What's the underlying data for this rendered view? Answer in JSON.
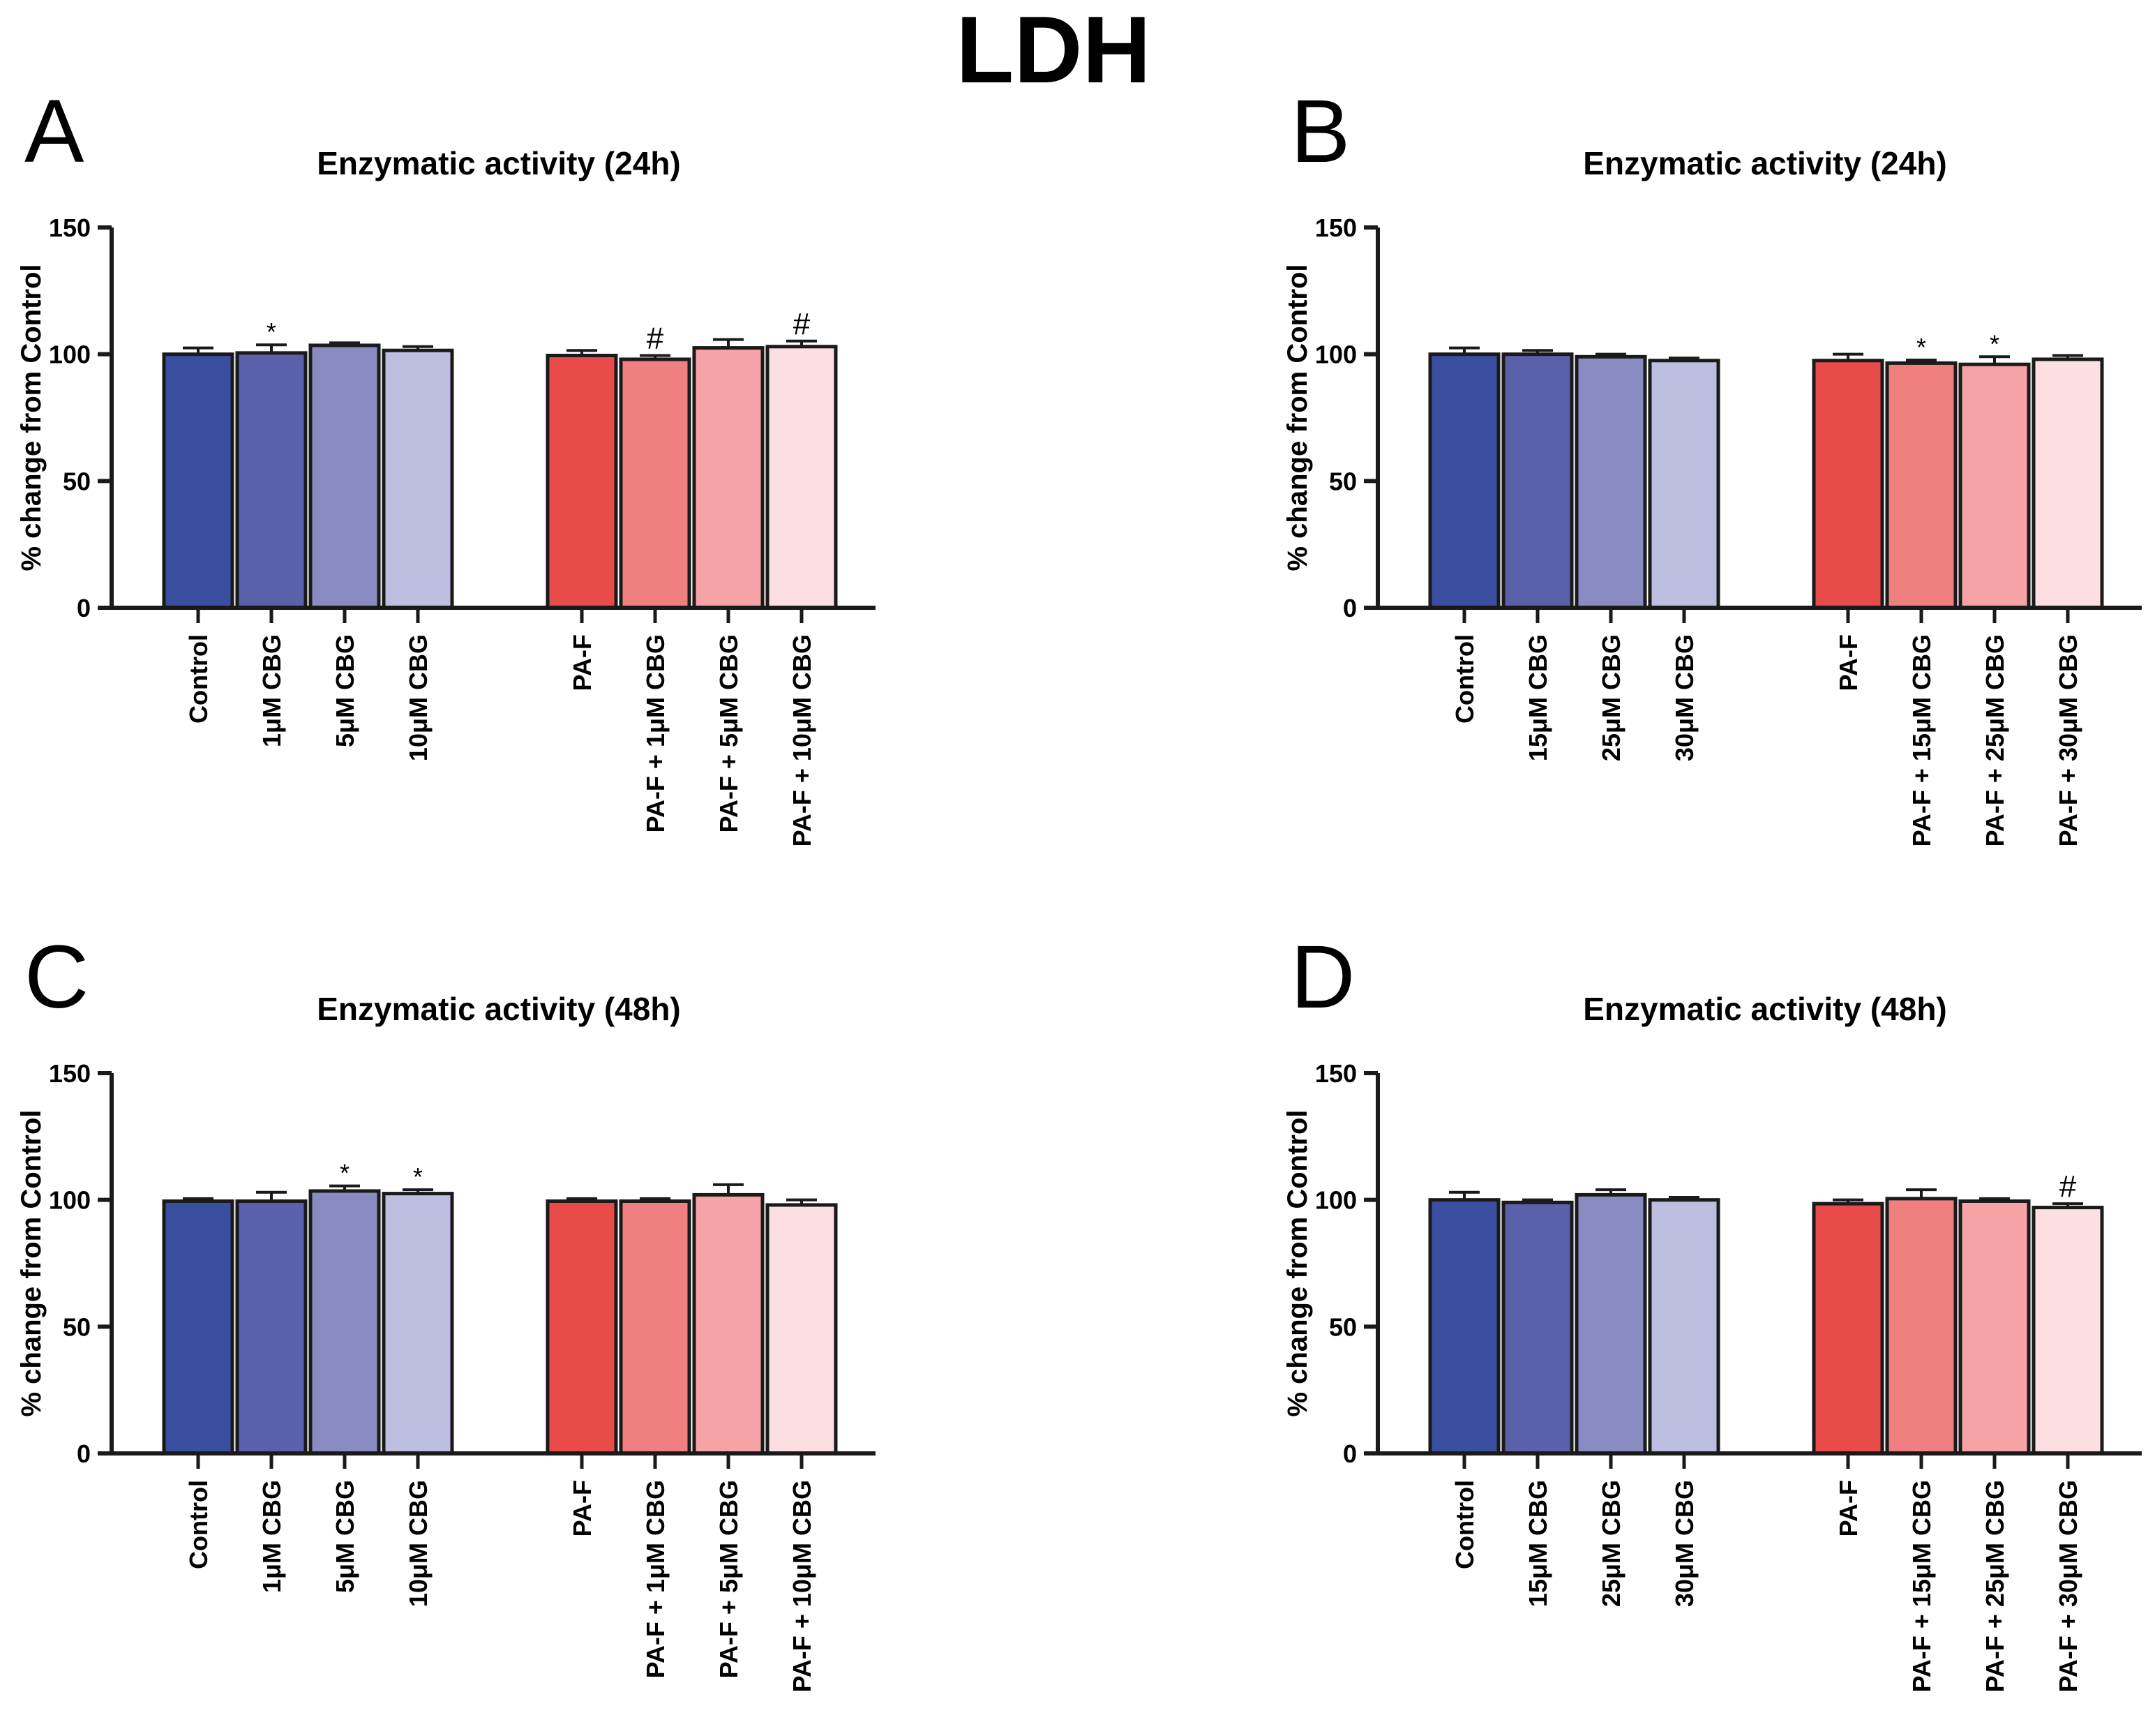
{
  "figure_title": "LDH",
  "chart_data": [
    {
      "type": "bar",
      "panel": "A",
      "title": "Enzymatic activity (24h)",
      "xlabel": "",
      "ylabel": "% change from Control",
      "ylim": [
        0,
        150
      ],
      "yticks": [
        "0",
        "50",
        "100",
        "150"
      ],
      "categories": [
        "Control",
        "1μM CBG",
        "5μM CBG",
        "10μM CBG",
        "PA-F",
        "PA-F + 1μM CBG",
        "PA-F + 5μM CBG",
        "PA-F + 10μM CBG"
      ],
      "values": [
        100,
        100.5,
        103.5,
        101.5,
        99.5,
        98,
        102.5,
        103
      ],
      "errors": [
        2.5,
        3.2,
        1.0,
        1.5,
        2.0,
        1.5,
        3.3,
        2.2
      ],
      "significance": [
        "",
        "*",
        "",
        "",
        "",
        "#",
        "",
        "#"
      ],
      "colors": [
        "#3a4f9f",
        "#5b60ab",
        "#8a8bc2",
        "#bebee0",
        "#e94b4b",
        "#f08080",
        "#f5a3a6",
        "#fbdfe2"
      ]
    },
    {
      "type": "bar",
      "panel": "B",
      "title": "Enzymatic activity (24h)",
      "xlabel": "",
      "ylabel": "% change from Control",
      "ylim": [
        0,
        150
      ],
      "yticks": [
        "0",
        "50",
        "100",
        "150"
      ],
      "categories": [
        "Control",
        "15μM CBG",
        "25μM CBG",
        "30μM CBG",
        "PA-F",
        "PA-F + 15μM CBG",
        "PA-F + 25μM CBG",
        "PA-F + 30μM CBG"
      ],
      "values": [
        100,
        100,
        99,
        97.5,
        97.5,
        96.5,
        96,
        98
      ],
      "errors": [
        2.5,
        1.5,
        1.0,
        1.0,
        2.5,
        1.2,
        3.0,
        1.5
      ],
      "significance": [
        "",
        "",
        "",
        "",
        "",
        "*",
        "*",
        ""
      ],
      "colors": [
        "#3a4f9f",
        "#5b60ab",
        "#8a8bc2",
        "#bebee0",
        "#e94b4b",
        "#f08080",
        "#f5a3a6",
        "#fbdfe2"
      ]
    },
    {
      "type": "bar",
      "panel": "C",
      "title": "Enzymatic activity (48h)",
      "xlabel": "",
      "ylabel": "% change from Control",
      "ylim": [
        0,
        150
      ],
      "yticks": [
        "0",
        "50",
        "100",
        "150"
      ],
      "categories": [
        "Control",
        "1μM CBG",
        "5μM CBG",
        "10μM CBG",
        "PA-F",
        "PA-F + 1μM CBG",
        "PA-F + 5μM CBG",
        "PA-F + 10μM CBG"
      ],
      "values": [
        99.5,
        99.5,
        103.5,
        102.5,
        99.5,
        99.5,
        102,
        98
      ],
      "errors": [
        1.0,
        3.5,
        2.0,
        1.5,
        1.0,
        1.0,
        4.0,
        2.0
      ],
      "significance": [
        "",
        "",
        "*",
        "*",
        "",
        "",
        "",
        ""
      ],
      "colors": [
        "#3a4f9f",
        "#5b60ab",
        "#8a8bc2",
        "#bebee0",
        "#e94b4b",
        "#f08080",
        "#f5a3a6",
        "#fbdfe2"
      ]
    },
    {
      "type": "bar",
      "panel": "D",
      "title": "Enzymatic activity (48h)",
      "xlabel": "",
      "ylabel": "% change from Control",
      "ylim": [
        0,
        150
      ],
      "yticks": [
        "0",
        "50",
        "100",
        "150"
      ],
      "categories": [
        "Control",
        "15μM CBG",
        "25μM CBG",
        "30μM CBG",
        "PA-F",
        "PA-F + 15μM CBG",
        "PA-F + 25μM CBG",
        "PA-F + 30μM CBG"
      ],
      "values": [
        100,
        99,
        102,
        100,
        98.5,
        100.5,
        99.5,
        97
      ],
      "errors": [
        3.0,
        1.0,
        2.0,
        1.0,
        1.5,
        3.5,
        1.0,
        1.5
      ],
      "significance": [
        "",
        "",
        "",
        "",
        "",
        "",
        "",
        "#"
      ],
      "colors": [
        "#3a4f9f",
        "#5b60ab",
        "#8a8bc2",
        "#bebee0",
        "#e94b4b",
        "#f08080",
        "#f5a3a6",
        "#fbdfe2"
      ]
    }
  ]
}
